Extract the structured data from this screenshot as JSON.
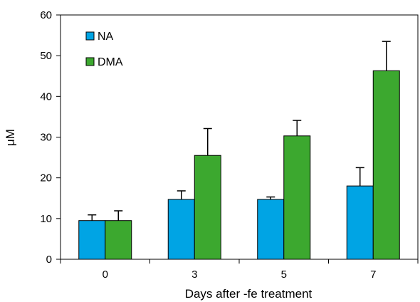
{
  "chart_data": {
    "type": "bar",
    "categories": [
      "0",
      "3",
      "5",
      "7"
    ],
    "series": [
      {
        "name": "NA",
        "color": "#00A4E4",
        "values": [
          9.5,
          14.7,
          14.7,
          18.0
        ],
        "errors": [
          1.4,
          2.1,
          0.6,
          4.5
        ]
      },
      {
        "name": "DMA",
        "color": "#3CA82F",
        "values": [
          9.5,
          25.5,
          30.3,
          46.3
        ],
        "errors": [
          2.4,
          6.6,
          3.8,
          7.2
        ]
      }
    ],
    "xlabel": "Days after -fe treatment",
    "ylabel": "μM",
    "ylim": [
      0,
      60
    ],
    "yticks": [
      0,
      10,
      20,
      30,
      40,
      50,
      60
    ],
    "grid": false,
    "legend_position": "top-left"
  }
}
